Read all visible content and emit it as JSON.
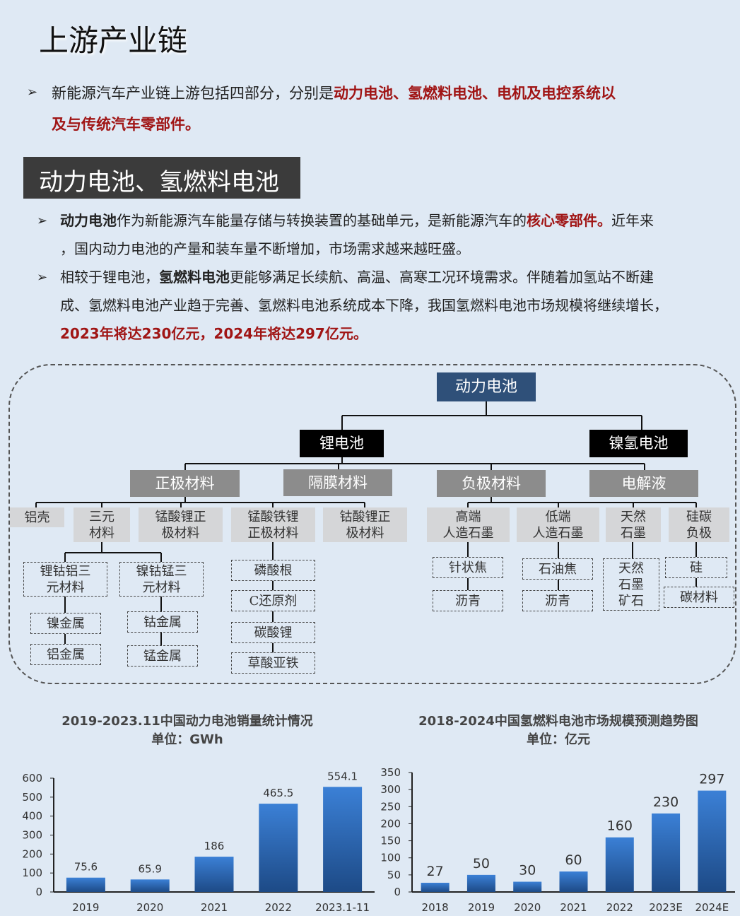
{
  "title": "上游产业链",
  "intro": {
    "text": "新能源汽车产业链上游包括四部分，分别是",
    "highlight1": "动力电池、氢燃料电池、电机及电控系统以",
    "highlight2": "及与传统汽车零部件。"
  },
  "section_title": "动力电池、氢燃料电池",
  "bullets": [
    {
      "b1": "动力电池",
      "t1": "作为新能源汽车能量存储与转换装置的基础单元，是新能源汽车的",
      "r1": "核心零部件。",
      "t2": "近年来",
      "line2": "，国内动力电池的产量和装车量不断增加，市场需求越来越旺盛。"
    },
    {
      "t0": "相较于锂电池，",
      "b1": "氢燃料电池",
      "t1": "更能够满足长续航、高温、高寒工况环境需求。伴随着加氢站不断建",
      "line2": "成、氢燃料电池产业趋于完善、氢燃料电池系统成本下降，我国氢燃料电池市场规模将继续增长，",
      "line3": "2023年将达230亿元，2024年将达297亿元。"
    }
  ],
  "diagram": {
    "root": "动力电池",
    "l1": [
      "锂电池",
      "镍氢电池"
    ],
    "l2": [
      "正极材料",
      "隔膜材料",
      "负极材料",
      "电解液"
    ],
    "l3": [
      "铝壳",
      "三元\n材料",
      "锰酸锂正\n极材料",
      "锰酸铁锂\n正极材料",
      "钴酸锂正\n极材料",
      "高端\n人造石墨",
      "低端\n人造石墨",
      "天然\n石墨",
      "硅碳\n负极"
    ],
    "l4": [
      "锂钴铝三\n元材料",
      "镍钴锰三\n元材料",
      "镍金属",
      "铝金属",
      "钴金属",
      "锰金属",
      "磷酸根",
      "C还原剂",
      "碳酸锂",
      "草酸亚铁",
      "针状焦",
      "沥青",
      "石油焦",
      "沥青",
      "天然\n石墨\n矿石",
      "硅",
      "碳材料"
    ]
  },
  "chart_data": [
    {
      "type": "bar",
      "title": "2019-2023.11中国动力电池销量统计情况",
      "subtitle": "单位：GWh",
      "categories": [
        "2019",
        "2020",
        "2021",
        "2022",
        "2023.1-11"
      ],
      "values": [
        75.6,
        65.9,
        186,
        465.5,
        554.1
      ],
      "ylim": [
        0,
        600
      ],
      "yticks": [
        0,
        100,
        200,
        300,
        400,
        500,
        600
      ],
      "color": "#2f6fbf"
    },
    {
      "type": "bar",
      "title": "2018-2024中国氢燃料电池市场规模预测趋势图",
      "subtitle": "单位：亿元",
      "categories": [
        "2018",
        "2019",
        "2020",
        "2021",
        "2022",
        "2023E",
        "2024E"
      ],
      "values": [
        27,
        50,
        30,
        60,
        160,
        230,
        297
      ],
      "ylim": [
        0,
        350
      ],
      "yticks": [
        0,
        50,
        100,
        150,
        200,
        250,
        300,
        350
      ],
      "color": "#2f6fbf"
    }
  ]
}
